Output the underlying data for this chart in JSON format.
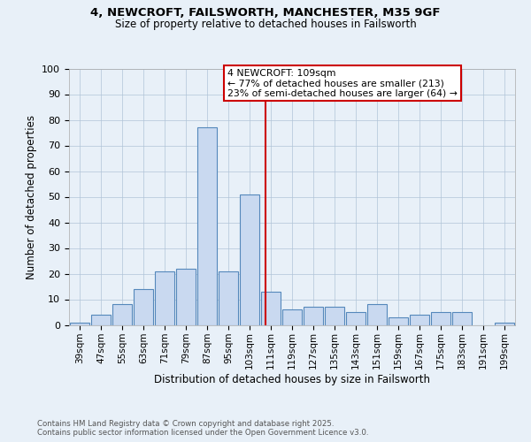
{
  "title_line1": "4, NEWCROFT, FAILSWORTH, MANCHESTER, M35 9GF",
  "title_line2": "Size of property relative to detached houses in Failsworth",
  "xlabel": "Distribution of detached houses by size in Failsworth",
  "ylabel": "Number of detached properties",
  "categories": [
    "39sqm",
    "47sqm",
    "55sqm",
    "63sqm",
    "71sqm",
    "79sqm",
    "87sqm",
    "95sqm",
    "103sqm",
    "111sqm",
    "119sqm",
    "127sqm",
    "135sqm",
    "143sqm",
    "151sqm",
    "159sqm",
    "167sqm",
    "175sqm",
    "183sqm",
    "191sqm",
    "199sqm"
  ],
  "values": [
    1,
    4,
    8,
    14,
    21,
    22,
    77,
    21,
    51,
    13,
    6,
    7,
    7,
    5,
    8,
    3,
    4,
    5,
    5,
    0,
    1
  ],
  "bar_color": "#c9d9f0",
  "bar_edge_color": "#5588bb",
  "grid_color": "#b0c4d8",
  "background_color": "#e8f0f8",
  "annotation_text": "4 NEWCROFT: 109sqm",
  "annotation_line1": "← 77% of detached houses are smaller (213)",
  "annotation_line2": "23% of semi-detached houses are larger (64) →",
  "annotation_box_color": "#ffffff",
  "annotation_box_edge": "#cc0000",
  "vline_color": "#cc0000",
  "footer_line1": "Contains HM Land Registry data © Crown copyright and database right 2025.",
  "footer_line2": "Contains public sector information licensed under the Open Government Licence v3.0.",
  "ylim": [
    0,
    100
  ],
  "yticks": [
    0,
    10,
    20,
    30,
    40,
    50,
    60,
    70,
    80,
    90,
    100
  ],
  "bin_width": 8,
  "vline_x": 109
}
